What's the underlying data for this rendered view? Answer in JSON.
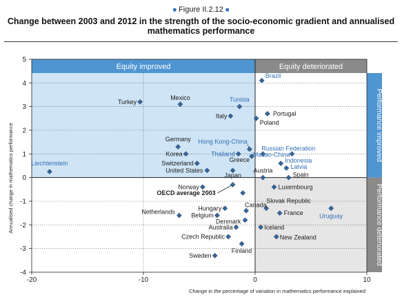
{
  "figure_label": "Figure II.2.12",
  "chart_data": {
    "type": "scatter",
    "title": "Change between 2003 and 2012 in the strength of the socio-economic gradient and annualised mathematics performance",
    "xlabel": "Change in the percentage of variation in mathematics performance explained",
    "ylabel": "Annualised change in mathematics performance",
    "xlim": [
      -20,
      10
    ],
    "ylim": [
      -4,
      5
    ],
    "x_ticks": [
      -20,
      -10,
      0,
      10
    ],
    "y_ticks": [
      -4,
      -3,
      -2,
      -1,
      0,
      1,
      2,
      3,
      4,
      5
    ],
    "regions": {
      "top_left": "Equity improved",
      "top_right": "Equity deteriorated",
      "right_top": "Performance improved",
      "right_bottom": "Performance deteriorated"
    },
    "points": [
      {
        "label": "Brazil",
        "x": 0.6,
        "y": 4.1,
        "highlight": true
      },
      {
        "label": "Turkey",
        "x": -10.3,
        "y": 3.2,
        "highlight": false
      },
      {
        "label": "Mexico",
        "x": -6.7,
        "y": 3.1,
        "highlight": false
      },
      {
        "label": "Tunisia",
        "x": -1.4,
        "y": 3.0,
        "highlight": true
      },
      {
        "label": "Portugal",
        "x": 1.1,
        "y": 2.7,
        "highlight": false
      },
      {
        "label": "Italy",
        "x": -2.2,
        "y": 2.6,
        "highlight": false
      },
      {
        "label": "Poland",
        "x": 0.1,
        "y": 2.5,
        "highlight": false
      },
      {
        "label": "Germany",
        "x": -6.9,
        "y": 1.3,
        "highlight": false
      },
      {
        "label": "Hong Kong-China",
        "x": -0.5,
        "y": 1.2,
        "highlight": true
      },
      {
        "label": "Korea",
        "x": -6.2,
        "y": 1.0,
        "highlight": false
      },
      {
        "label": "Thailand",
        "x": -1.5,
        "y": 1.0,
        "highlight": true
      },
      {
        "label": "Russian Federation",
        "x": 0.7,
        "y": 1.0,
        "highlight": true
      },
      {
        "label": "Macao-China",
        "x": 3.3,
        "y": 1.0,
        "highlight": true
      },
      {
        "label": "Greece",
        "x": -0.3,
        "y": 0.9,
        "highlight": false
      },
      {
        "label": "Switzerland",
        "x": -5.2,
        "y": 0.6,
        "highlight": false
      },
      {
        "label": "Indonesia",
        "x": 2.3,
        "y": 0.6,
        "highlight": true
      },
      {
        "label": "Latvia",
        "x": 2.8,
        "y": 0.4,
        "highlight": true
      },
      {
        "label": "Liechtenstein",
        "x": -18.4,
        "y": 0.25,
        "highlight": true
      },
      {
        "label": "United States",
        "x": -4.3,
        "y": 0.3,
        "highlight": false
      },
      {
        "label": "Japan",
        "x": -2.0,
        "y": 0.3,
        "highlight": false
      },
      {
        "label": "Austria",
        "x": 0.7,
        "y": 0.0,
        "highlight": false
      },
      {
        "label": "Spain",
        "x": 3.0,
        "y": 0.0,
        "highlight": false
      },
      {
        "label": "Luxembourg",
        "x": 1.7,
        "y": -0.4,
        "highlight": false
      },
      {
        "label": "Norway",
        "x": -4.7,
        "y": -0.4,
        "highlight": false
      },
      {
        "label": "OECD average 2003",
        "x": -2.0,
        "y": -0.3,
        "highlight": false
      },
      {
        "label": "",
        "x": -1.1,
        "y": -0.65,
        "highlight": false
      },
      {
        "label": "Slovak Republic",
        "x": 1.0,
        "y": -1.3,
        "highlight": false
      },
      {
        "label": "Uruguay",
        "x": 6.8,
        "y": -1.3,
        "highlight": true
      },
      {
        "label": "Hungary",
        "x": -2.7,
        "y": -1.3,
        "highlight": false
      },
      {
        "label": "Canada",
        "x": -0.8,
        "y": -1.4,
        "highlight": false
      },
      {
        "label": "Netherlands",
        "x": -6.8,
        "y": -1.6,
        "highlight": false
      },
      {
        "label": "Belgium",
        "x": -3.4,
        "y": -1.6,
        "highlight": false
      },
      {
        "label": "France",
        "x": 2.2,
        "y": -1.5,
        "highlight": false
      },
      {
        "label": "Denmark",
        "x": -0.9,
        "y": -1.8,
        "highlight": false
      },
      {
        "label": "Australia",
        "x": -1.7,
        "y": -2.1,
        "highlight": false
      },
      {
        "label": "Iceland",
        "x": 0.5,
        "y": -2.1,
        "highlight": false
      },
      {
        "label": "Czech Republic",
        "x": -2.4,
        "y": -2.5,
        "highlight": false
      },
      {
        "label": "New Zealand",
        "x": 1.9,
        "y": -2.5,
        "highlight": false
      },
      {
        "label": "Finland",
        "x": -1.2,
        "y": -2.8,
        "highlight": false
      },
      {
        "label": "Sweden",
        "x": -3.6,
        "y": -3.3,
        "highlight": false
      }
    ]
  },
  "colors": {
    "band": "#4f95d1",
    "shade_top_left": "#cfe4f5",
    "shade_bottom_right": "#e6e6e6",
    "marker": "#36659b",
    "highlight_label": "#2f6eb5",
    "label": "#1a1a1a"
  }
}
